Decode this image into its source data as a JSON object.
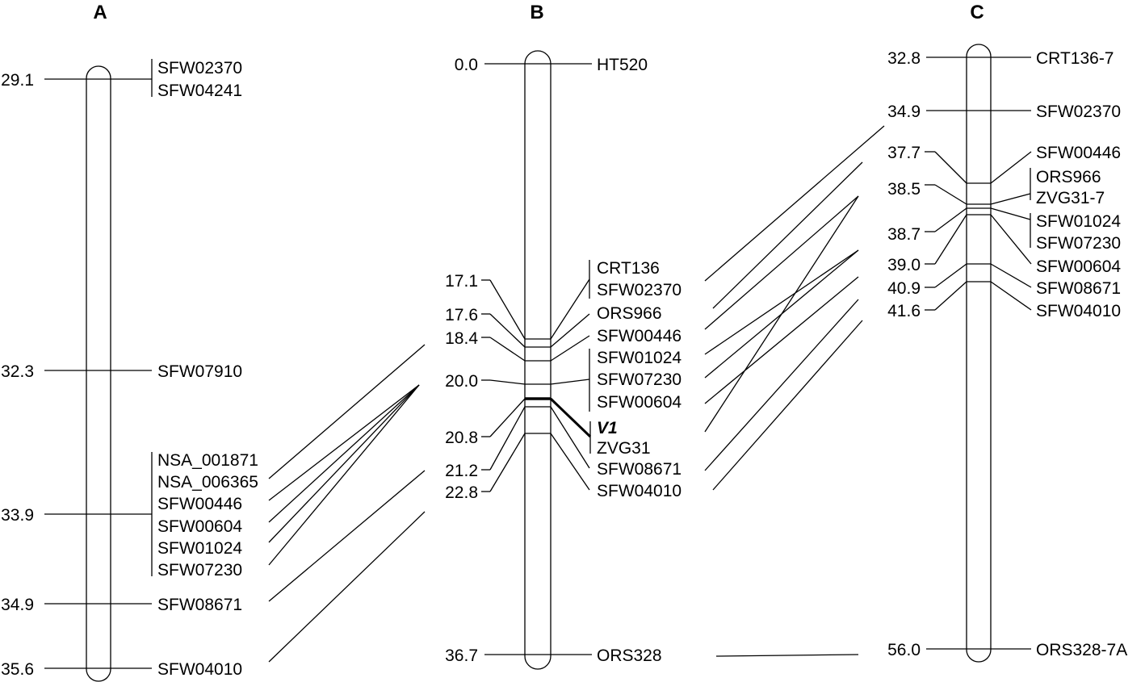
{
  "colors": {
    "line": "#000000",
    "background": "#ffffff",
    "text": "#000000"
  },
  "maps": [
    {
      "id": "A",
      "title": "A",
      "positions": [
        "29.1",
        "32.3",
        "33.9",
        "34.9",
        "35.6"
      ],
      "markers": [
        "SFW02370",
        "SFW04241",
        "SFW07910",
        "NSA_001871",
        "NSA_006365",
        "SFW00446",
        "SFW00604",
        "SFW01024",
        "SFW07230",
        "SFW08671",
        "SFW04010"
      ]
    },
    {
      "id": "B",
      "title": "B",
      "positions": [
        "0.0",
        "17.1",
        "17.6",
        "18.4",
        "20.0",
        "20.8",
        "21.2",
        "22.8",
        "36.7"
      ],
      "markers": [
        "HT520",
        "CRT136",
        "SFW02370",
        "ORS966",
        "SFW00446",
        "SFW01024",
        "SFW07230",
        "SFW00604",
        "V1",
        "ZVG31",
        "SFW08671",
        "SFW04010",
        "ORS328"
      ]
    },
    {
      "id": "C",
      "title": "C",
      "positions": [
        "32.8",
        "34.9",
        "37.7",
        "38.5",
        "38.7",
        "39.0",
        "40.9",
        "41.6",
        "56.0"
      ],
      "markers": [
        "CRT136-7",
        "SFW02370",
        "SFW00446",
        "ORS966",
        "ZVG31-7",
        "SFW01024",
        "SFW07230",
        "SFW00604",
        "SFW08671",
        "SFW04010",
        "ORS328-7A"
      ]
    }
  ]
}
